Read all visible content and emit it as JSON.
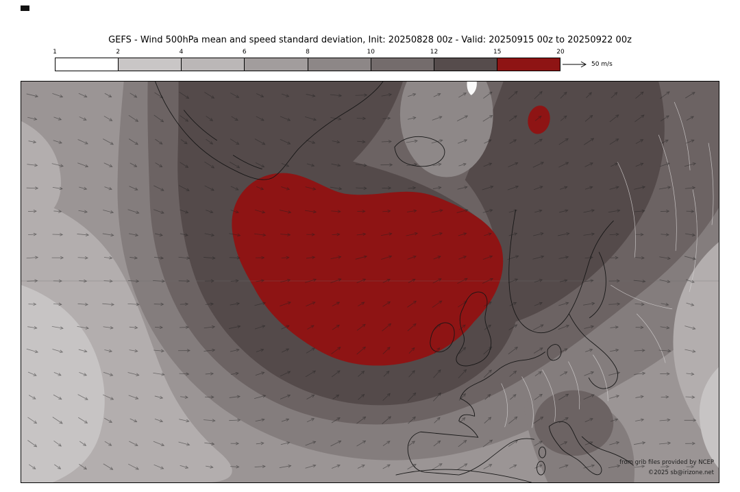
{
  "title": "GEFS - Wind 500hPa mean and speed standard deviation, Init: 20250828 00z - Valid: 20250915 00z to 20250922 00z",
  "colorbar": {
    "ticks": [
      "1",
      "2",
      "4",
      "6",
      "8",
      "10",
      "12",
      "15",
      "20"
    ],
    "colors": [
      "#ffffff",
      "#c9c6c6",
      "#bbb7b7",
      "#a29d9d",
      "#8d8787",
      "#746c6c",
      "#564c4c",
      "#8e1414"
    ],
    "reference_label": "50 m/s"
  },
  "attribution": {
    "line1": "from grib files provided by NCEP",
    "line2": "©2025 sb@irizone.net"
  },
  "chart_data": {
    "type": "heatmap",
    "title": "GEFS - Wind 500hPa mean and speed standard deviation",
    "model": "GEFS",
    "level": "500hPa",
    "init": "20250828 00z",
    "valid_from": "20250915 00z",
    "valid_to": "20250922 00z",
    "units": "m/s",
    "contour_levels": [
      1,
      2,
      4,
      6,
      8,
      10,
      12,
      15,
      20
    ],
    "palette": [
      "#ffffff",
      "#c9c6c6",
      "#bbb7b7",
      "#a29d9d",
      "#8d8787",
      "#746c6c",
      "#564c4c",
      "#8e1414"
    ],
    "reference_vector_mps": 50,
    "legend_position": "top",
    "region": "North Atlantic and Europe",
    "maxima": [
      {
        "location": "central North Atlantic between southern Greenland and the British Isles",
        "std_dev_range": "15-20 m/s"
      },
      {
        "location": "small area in the Barents Sea / far northeast of map",
        "std_dev_range": "15-20 m/s"
      }
    ],
    "minima": [
      {
        "location": "southwest corner of domain and far bottom-right corner",
        "std_dev_range": "2-4 m/s"
      }
    ],
    "vector_overlay": "500hPa mean wind arrows, predominantly westerly flow"
  }
}
